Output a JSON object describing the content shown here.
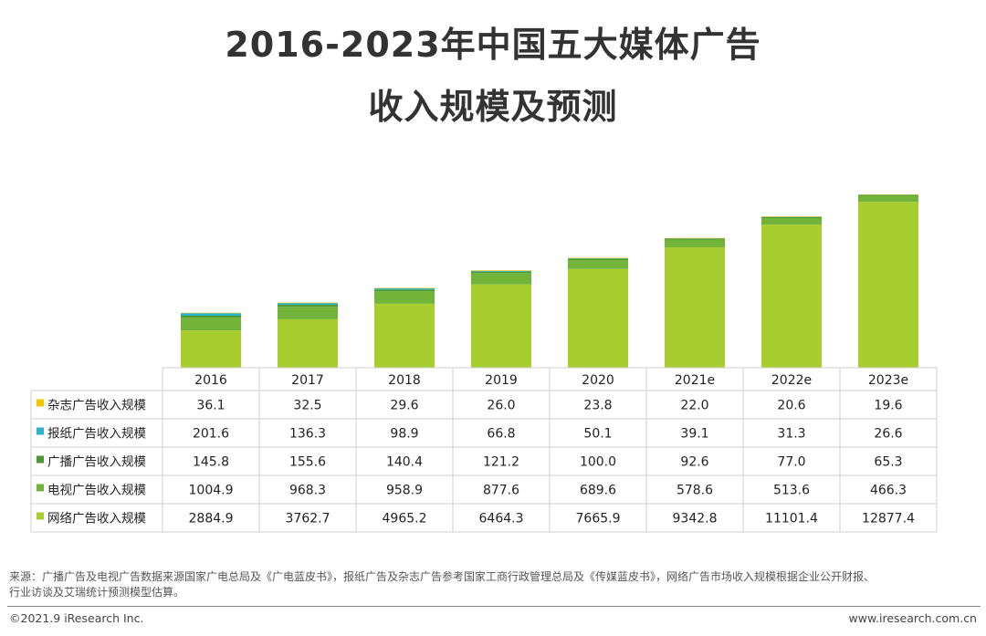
{
  "chart_data": {
    "type": "bar",
    "stacked": true,
    "title": "2016-2023年中国五大媒体广告",
    "subtitle": "收入规模及预测",
    "categories": [
      "2016",
      "2017",
      "2018",
      "2019",
      "2020",
      "2021e",
      "2022e",
      "2023e"
    ],
    "series": [
      {
        "name": "杂志广告收入规模",
        "color": "#f5c400",
        "values": [
          36.1,
          32.5,
          29.6,
          26.0,
          23.8,
          22.0,
          20.6,
          19.6
        ]
      },
      {
        "name": "报纸广告收入规模",
        "color": "#2ab3cf",
        "values": [
          201.6,
          136.3,
          98.9,
          66.8,
          50.1,
          39.1,
          31.3,
          26.6
        ]
      },
      {
        "name": "广播广告收入规模",
        "color": "#4f9a2e",
        "values": [
          145.8,
          155.6,
          140.4,
          121.2,
          100.0,
          92.6,
          77.0,
          65.3
        ]
      },
      {
        "name": "电视广告收入规模",
        "color": "#72b43a",
        "values": [
          1004.9,
          968.3,
          958.9,
          877.6,
          689.6,
          578.6,
          513.6,
          466.3
        ]
      },
      {
        "name": "网络广告收入规模",
        "color": "#a7cd2e",
        "values": [
          2884.9,
          3762.7,
          4965.2,
          6464.3,
          7665.9,
          9342.8,
          11101.4,
          12877.4
        ]
      }
    ],
    "table_order": [
      0,
      1,
      2,
      3,
      4
    ],
    "stack_order_bottom_to_top": [
      4,
      3,
      2,
      1,
      0
    ],
    "legend_placement": "left of data table",
    "grid": false
  },
  "footer": {
    "source_line1": "来源：广播广告及电视广告数据来源国家广电总局及《广电蓝皮书》，报纸广告及杂志广告参考国家工商行政管理总局及《传媒蓝皮书》，网络广告市场收入规模根据企业公开财报、",
    "source_line2": "行业访谈及艾瑞统计预测模型估算。",
    "copyright": "©2021.9 iResearch Inc.",
    "website": "www.iresearch.com.cn"
  }
}
